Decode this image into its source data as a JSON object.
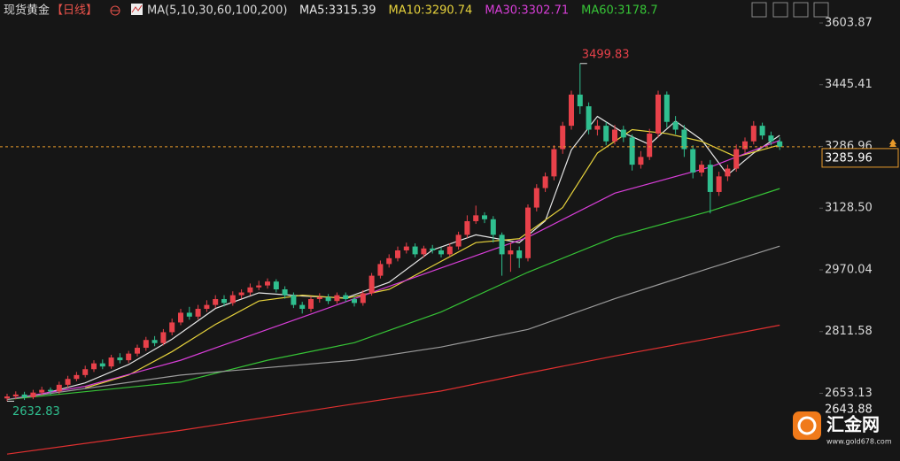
{
  "chart_data": {
    "type": "candlestick",
    "title": "现货黄金",
    "period": "【日线】",
    "indicator": "MA(5,10,30,60,100,200)",
    "up_color": "#e8414a",
    "down_color": "#2fbf8f",
    "open": [
      2640,
      2645,
      2650,
      2643,
      2655,
      2662,
      2658,
      2675,
      2690,
      2700,
      2715,
      2730,
      2722,
      2745,
      2738,
      2755,
      2770,
      2790,
      2782,
      2810,
      2835,
      2860,
      2850,
      2870,
      2880,
      2895,
      2885,
      2905,
      2912,
      2925,
      2930,
      2940,
      2920,
      2905,
      2880,
      2870,
      2895,
      2900,
      2890,
      2905,
      2895,
      2885,
      2910,
      2955,
      2985,
      3000,
      3020,
      3030,
      3010,
      3025,
      3020,
      3010,
      3030,
      3060,
      3095,
      3110,
      3100,
      3060,
      3010,
      3020,
      3000,
      3130,
      3180,
      3210,
      3280,
      3340,
      3420,
      3390,
      3330,
      3340,
      3300,
      3330,
      3310,
      3240,
      3260,
      3320,
      3420,
      3350,
      3330,
      3280,
      3220,
      3240,
      3170,
      3210,
      3230,
      3280,
      3300,
      3340,
      3315,
      3300
    ],
    "high": [
      2652,
      2658,
      2657,
      2662,
      2670,
      2668,
      2683,
      2698,
      2708,
      2724,
      2738,
      2740,
      2752,
      2756,
      2762,
      2778,
      2798,
      2800,
      2818,
      2845,
      2870,
      2875,
      2880,
      2892,
      2905,
      2905,
      2915,
      2920,
      2935,
      2942,
      2948,
      2946,
      2928,
      2912,
      2888,
      2902,
      2910,
      2908,
      2912,
      2912,
      2902,
      2918,
      2962,
      2994,
      3010,
      3030,
      3040,
      3038,
      3032,
      3034,
      3028,
      3038,
      3068,
      3110,
      3135,
      3118,
      3108,
      3066,
      3040,
      3030,
      3138,
      3190,
      3220,
      3290,
      3350,
      3430,
      3499.83,
      3400,
      3355,
      3350,
      3342,
      3340,
      3318,
      3275,
      3332,
      3430,
      3428,
      3365,
      3342,
      3290,
      3250,
      3252,
      3222,
      3240,
      3292,
      3310,
      3352,
      3348,
      3325,
      3310
    ],
    "low": [
      2632.83,
      2638,
      2636,
      2638,
      2648,
      2650,
      2652,
      2668,
      2684,
      2694,
      2708,
      2715,
      2716,
      2730,
      2731,
      2748,
      2762,
      2774,
      2776,
      2802,
      2828,
      2842,
      2843,
      2862,
      2872,
      2876,
      2878,
      2896,
      2904,
      2918,
      2922,
      2912,
      2896,
      2872,
      2858,
      2862,
      2886,
      2882,
      2883,
      2887,
      2876,
      2878,
      2904,
      2948,
      2976,
      2992,
      3012,
      3002,
      3002,
      3012,
      3002,
      3004,
      3022,
      3052,
      3088,
      3090,
      3040,
      2955,
      2965,
      2975,
      2992,
      3120,
      3170,
      3200,
      3268,
      3330,
      3370,
      3318,
      3315,
      3290,
      3292,
      3298,
      3225,
      3230,
      3252,
      3310,
      3335,
      3318,
      3260,
      3205,
      3210,
      3115,
      3160,
      3198,
      3222,
      3270,
      3292,
      3305,
      3290,
      3278
    ],
    "close": [
      2645,
      2650,
      2643,
      2655,
      2662,
      2658,
      2675,
      2690,
      2700,
      2715,
      2730,
      2722,
      2745,
      2738,
      2755,
      2770,
      2790,
      2782,
      2810,
      2835,
      2860,
      2850,
      2870,
      2880,
      2895,
      2885,
      2905,
      2912,
      2925,
      2930,
      2940,
      2920,
      2905,
      2880,
      2870,
      2895,
      2900,
      2890,
      2905,
      2895,
      2885,
      2910,
      2955,
      2985,
      3000,
      3020,
      3030,
      3010,
      3025,
      3020,
      3010,
      3030,
      3060,
      3095,
      3110,
      3100,
      3060,
      3010,
      3020,
      3000,
      3130,
      3180,
      3210,
      3280,
      3340,
      3420,
      3390,
      3330,
      3340,
      3300,
      3330,
      3310,
      3240,
      3260,
      3320,
      3420,
      3350,
      3330,
      3280,
      3220,
      3240,
      3170,
      3210,
      3230,
      3280,
      3300,
      3340,
      3315,
      3300,
      3285.96
    ],
    "series": [
      {
        "name": "MA5",
        "legend": "MA5:3315.39",
        "last": 3315.39,
        "color": "#e6e6e6",
        "x": [
          4,
          9,
          14,
          19,
          24,
          29,
          34,
          39,
          44,
          49,
          54,
          59,
          62,
          65,
          68,
          71,
          74,
          77,
          80,
          83,
          86,
          89
        ],
        "values": [
          2651,
          2680,
          2727,
          2792,
          2871,
          2911,
          2903,
          2898,
          2938,
          3021,
          3060,
          3040,
          3096,
          3278,
          3364,
          3322,
          3292,
          3352,
          3304,
          3214,
          3270,
          3315.39
        ]
      },
      {
        "name": "MA10",
        "legend": "MA10:3290.74",
        "last": 3290.74,
        "color": "#e6d23c",
        "x": [
          9,
          14,
          19,
          24,
          29,
          34,
          39,
          44,
          49,
          54,
          59,
          64,
          68,
          72,
          76,
          80,
          84,
          89
        ],
        "values": [
          2667,
          2700,
          2760,
          2830,
          2890,
          2905,
          2897,
          2920,
          2980,
          3040,
          3050,
          3130,
          3270,
          3330,
          3320,
          3300,
          3260,
          3290.74
        ]
      },
      {
        "name": "MA30",
        "legend": "MA30:3302.71",
        "last": 3302.71,
        "color": "#d83ed8",
        "x": [
          0,
          9,
          20,
          30,
          40,
          50,
          60,
          70,
          81,
          89
        ],
        "values": [
          2637,
          2671,
          2738,
          2817,
          2896,
          2975,
          3054,
          3167,
          3234,
          3302.71
        ]
      },
      {
        "name": "MA60",
        "legend": "MA60:3178.7",
        "last": 3178.7,
        "color": "#36c336",
        "x": [
          0,
          20,
          30,
          40,
          50,
          60,
          70,
          81,
          89
        ],
        "values": [
          2637,
          2682,
          2738,
          2783,
          2862,
          2964,
          3054,
          3121,
          3178.7
        ]
      },
      {
        "name": "MA100",
        "color": "#9a9a9a",
        "x": [
          0,
          20,
          40,
          50,
          60,
          70,
          81,
          89
        ],
        "values": [
          2637,
          2700,
          2738,
          2772,
          2817,
          2896,
          2975,
          3031
        ]
      },
      {
        "name": "MA200",
        "color": "#e03030",
        "x": [
          0,
          20,
          40,
          50,
          60,
          70,
          81,
          89
        ],
        "values": [
          2497,
          2558,
          2626,
          2659,
          2705,
          2749,
          2794,
          2828
        ]
      }
    ],
    "ylim": [
      2479.3,
      3612.9
    ],
    "yticks": [
      3603.87,
      3445.41,
      3286.96,
      {
        "value": 3128.5,
        "label": "3128.50"
      },
      2970.04,
      2811.58,
      2653.13
    ],
    "last_price": 3285.96,
    "bottom_price": 2643.88,
    "high_label": 3499.83,
    "low_label": 2632.83,
    "logo": {
      "name": "汇金网",
      "url": "www.gold678.com"
    }
  }
}
